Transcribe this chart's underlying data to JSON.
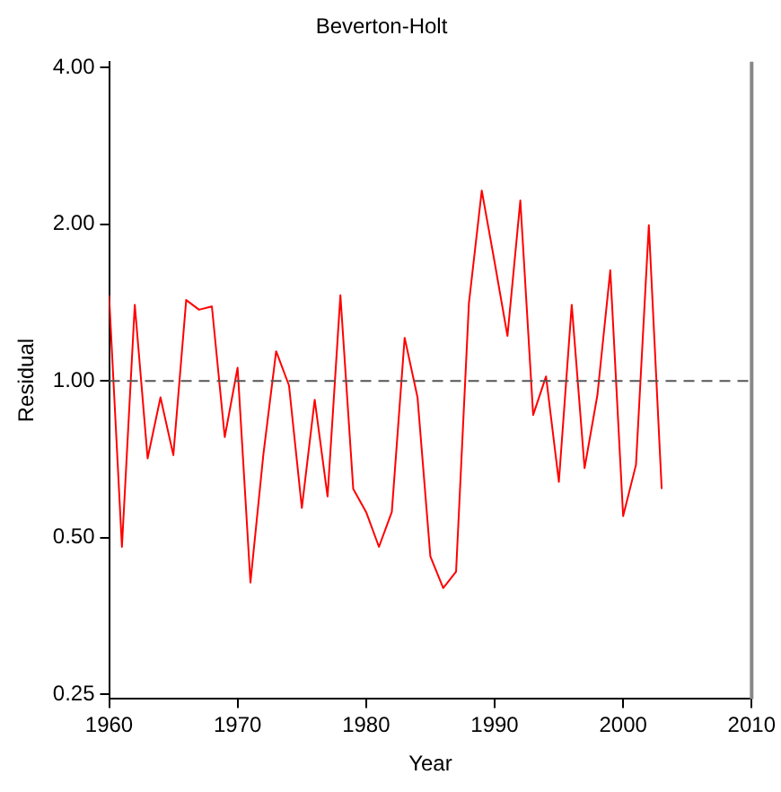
{
  "chart_data": {
    "type": "line",
    "title": "Beverton-Holt",
    "xlabel": "Year",
    "ylabel": "Residual",
    "x": [
      1960,
      1961,
      1962,
      1963,
      1964,
      1965,
      1966,
      1967,
      1968,
      1969,
      1970,
      1971,
      1972,
      1973,
      1974,
      1975,
      1976,
      1977,
      1978,
      1979,
      1980,
      1981,
      1982,
      1983,
      1984,
      1985,
      1986,
      1987,
      1988,
      1989,
      1990,
      1991,
      1992,
      1993,
      1994,
      1995,
      1996,
      1997,
      1998,
      1999,
      2000,
      2001,
      2002,
      2003
    ],
    "series": [
      {
        "color": "#ff0000",
        "values": [
          1.46,
          0.48,
          1.4,
          0.71,
          0.93,
          0.72,
          1.43,
          1.37,
          1.39,
          0.78,
          1.06,
          0.41,
          0.72,
          1.14,
          0.98,
          0.57,
          0.92,
          0.6,
          1.46,
          0.62,
          0.56,
          0.48,
          0.56,
          1.21,
          0.93,
          0.46,
          0.4,
          0.43,
          1.41,
          2.32,
          1.69,
          1.22,
          2.22,
          0.86,
          1.02,
          0.64,
          1.4,
          0.68,
          0.94,
          1.63,
          0.55,
          0.69,
          1.99,
          0.62
        ]
      }
    ],
    "log": "y",
    "xlim": [
      1960,
      2010
    ],
    "xticks": [
      1960,
      1970,
      1980,
      1990,
      2000,
      2010
    ],
    "ylim": [
      0.245,
      4.1
    ],
    "yticks": [
      {
        "value": 0.25,
        "label": "0.25"
      },
      {
        "value": 0.5,
        "label": "0.50"
      },
      {
        "value": 1,
        "label": "1.00"
      },
      {
        "value": 2,
        "label": "2.00"
      },
      {
        "value": 4,
        "label": "4.00"
      }
    ],
    "ref_lines": [
      {
        "axis": "y",
        "value": 1,
        "color": "#555555",
        "line_style": "dashed"
      }
    ],
    "grid": false,
    "legend": false,
    "marker": "none",
    "line_style": "solid"
  }
}
